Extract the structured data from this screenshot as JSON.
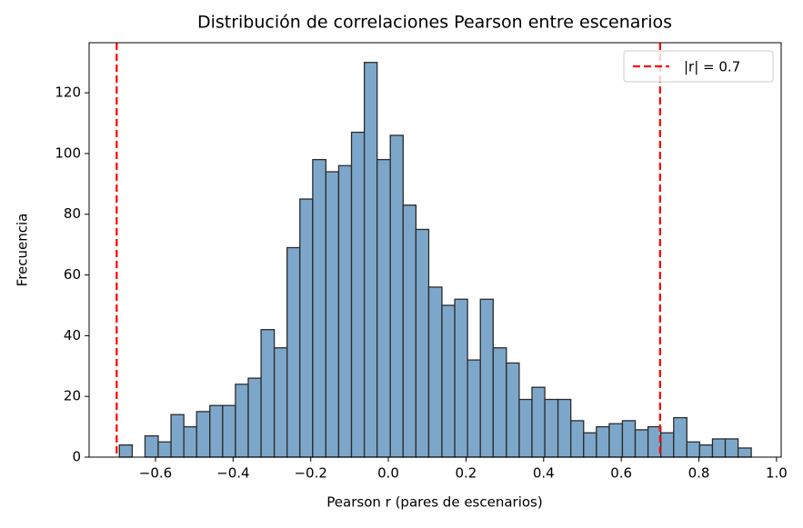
{
  "chart_data": {
    "type": "histogram",
    "title": "Distribución de correlaciones Pearson entre escenarios",
    "xlabel": "Pearson r (pares de escenarios)",
    "ylabel": "Frecuencia",
    "bins": [
      -0.693,
      -0.66,
      -0.627,
      -0.593,
      -0.56,
      -0.527,
      -0.494,
      -0.46,
      -0.427,
      -0.394,
      -0.361,
      -0.328,
      -0.294,
      -0.261,
      -0.228,
      -0.195,
      -0.161,
      -0.128,
      -0.095,
      -0.062,
      -0.029,
      0.005,
      0.038,
      0.071,
      0.104,
      0.138,
      0.171,
      0.204,
      0.237,
      0.27,
      0.304,
      0.337,
      0.37,
      0.403,
      0.437,
      0.47,
      0.503,
      0.536,
      0.569,
      0.603,
      0.636,
      0.669,
      0.702,
      0.735,
      0.769,
      0.802,
      0.835,
      0.868,
      0.901,
      0.935
    ],
    "counts": [
      4,
      0,
      7,
      5,
      14,
      10,
      15,
      17,
      17,
      24,
      26,
      42,
      36,
      69,
      85,
      98,
      94,
      96,
      107,
      130,
      98,
      106,
      83,
      75,
      56,
      50,
      52,
      32,
      52,
      36,
      31,
      19,
      23,
      19,
      19,
      12,
      8,
      10,
      11,
      12,
      9,
      10,
      8,
      13,
      5,
      4,
      6,
      6,
      3
    ],
    "color": "#7da7ca",
    "edgecolor": "#2b2b2b",
    "reference_lines": {
      "name": "|r| = 0.7",
      "values": [
        -0.7,
        0.7
      ],
      "color": "#ff0000"
    },
    "legend": "upper right",
    "xlim": [
      -0.771,
      1.012
    ],
    "ylim": [
      0,
      136.5
    ],
    "xticks": [
      {
        "value": -0.6,
        "label": "−0.6"
      },
      {
        "value": -0.4,
        "label": "−0.4"
      },
      {
        "value": -0.2,
        "label": "−0.2"
      },
      {
        "value": 0,
        "label": "0.0"
      },
      {
        "value": 0.2,
        "label": "0.2"
      },
      {
        "value": 0.4,
        "label": "0.4"
      },
      {
        "value": 0.6,
        "label": "0.6"
      },
      {
        "value": 0.8,
        "label": "0.8"
      },
      {
        "value": 1,
        "label": "1.0"
      }
    ],
    "yticks": [
      0,
      20,
      40,
      60,
      80,
      100,
      120
    ]
  }
}
